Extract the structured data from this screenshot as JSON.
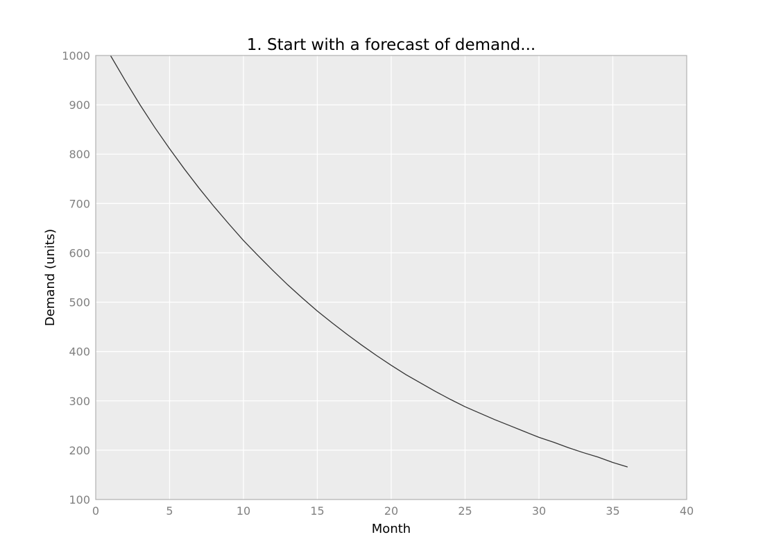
{
  "chart_data": {
    "type": "line",
    "title": "1. Start with a forecast of demand...",
    "xlabel": "Month",
    "ylabel": "Demand (units)",
    "xlim": [
      0,
      40
    ],
    "ylim": [
      100,
      1000
    ],
    "xticks": [
      "0",
      "5",
      "10",
      "15",
      "20",
      "25",
      "30",
      "35",
      "40"
    ],
    "yticks": [
      "100",
      "200",
      "300",
      "400",
      "500",
      "600",
      "700",
      "800",
      "900",
      "1000"
    ],
    "grid": true,
    "colors": {
      "background": "#ececec",
      "grid": "#ffffff",
      "line": "#333333",
      "frame": "#b0b0b0",
      "tick_text": "#808080"
    },
    "series": [
      {
        "x": [
          1,
          2,
          3,
          4,
          5,
          6,
          7,
          8,
          9,
          10,
          11,
          12,
          13,
          14,
          15,
          16,
          17,
          18,
          19,
          20,
          21,
          22,
          23,
          24,
          25,
          26,
          27,
          28,
          29,
          30,
          31,
          32,
          33,
          34,
          35,
          36
        ],
        "values": [
          1000,
          949,
          900,
          854,
          811,
          770,
          731,
          694,
          659,
          625,
          594,
          564,
          535,
          508,
          482,
          458,
          435,
          413,
          392,
          372,
          353,
          336,
          319,
          303,
          288,
          275,
          262,
          250,
          238,
          226,
          216,
          205,
          195,
          186,
          175,
          166
        ]
      }
    ]
  }
}
